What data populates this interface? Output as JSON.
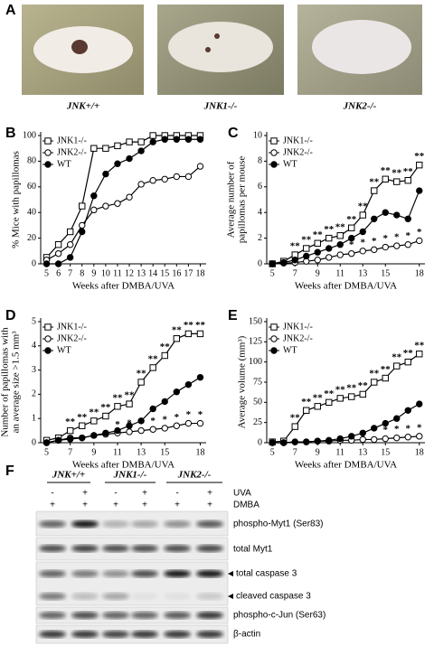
{
  "photos": {
    "panel": "A",
    "labels": [
      "JNK+/+",
      "JNK1-/-",
      "JNK2-/-"
    ]
  },
  "chart_data": [
    {
      "type": "line",
      "panel": "B",
      "xlabel": "Weeks after DMBA/UVA",
      "ylabel": [
        "% Mice with papillomas"
      ],
      "x": [
        5,
        6,
        7,
        8,
        9,
        10,
        11,
        12,
        13,
        14,
        15,
        16,
        17,
        18
      ],
      "xlim": [
        4.5,
        18.5
      ],
      "xticks": [
        5,
        6,
        7,
        8,
        9,
        10,
        11,
        12,
        13,
        14,
        15,
        16,
        17,
        18
      ],
      "ylim": [
        0,
        100
      ],
      "yticks": [
        0,
        20,
        40,
        60,
        80,
        100
      ],
      "series": [
        {
          "name": "JNK1-/-",
          "color": "#000000",
          "marker": "square",
          "values": [
            5,
            15,
            25,
            45,
            90,
            90,
            92,
            95,
            95,
            100,
            100,
            100,
            100,
            100
          ],
          "significance": [
            null,
            null,
            null,
            null,
            null,
            null,
            null,
            null,
            null,
            null,
            null,
            null,
            null,
            null
          ]
        },
        {
          "name": "JNK2-/-",
          "color": "#000000",
          "marker": "open-circle",
          "values": [
            3,
            8,
            15,
            30,
            42,
            45,
            47,
            52,
            62,
            65,
            66,
            68,
            68,
            76
          ],
          "significance": [
            null,
            null,
            null,
            null,
            null,
            null,
            null,
            null,
            null,
            null,
            null,
            null,
            null,
            null
          ]
        },
        {
          "name": "WT",
          "color": "#000000",
          "marker": "filled-circle",
          "values": [
            0,
            0,
            5,
            25,
            53,
            70,
            78,
            82,
            88,
            95,
            97,
            97,
            97,
            97
          ],
          "significance": [
            null,
            null,
            null,
            null,
            null,
            null,
            null,
            null,
            null,
            null,
            null,
            null,
            null,
            null
          ]
        }
      ]
    },
    {
      "type": "line",
      "panel": "C",
      "xlabel": "Weeks after DMBA/UVA",
      "ylabel": [
        "Average number of",
        "papillomas per mouse"
      ],
      "x": [
        5,
        6,
        7,
        8,
        9,
        10,
        11,
        12,
        13,
        14,
        15,
        16,
        17,
        18
      ],
      "xlim": [
        4.5,
        18.5
      ],
      "xticks": [
        5,
        7,
        9,
        11,
        13,
        15,
        18
      ],
      "ylim": [
        0,
        10
      ],
      "yticks": [
        0,
        2,
        4,
        6,
        8,
        10
      ],
      "series": [
        {
          "name": "JNK1-/-",
          "color": "#000000",
          "marker": "square",
          "values": [
            0,
            0.2,
            0.7,
            1.2,
            1.6,
            2.0,
            2.2,
            2.8,
            3.8,
            5.7,
            6.6,
            6.4,
            6.5,
            7.7
          ],
          "significance": [
            null,
            null,
            "**",
            "**",
            "**",
            "**",
            "**",
            "**",
            "**",
            "**",
            "**",
            "**",
            "**",
            "**"
          ]
        },
        {
          "name": "JNK2-/-",
          "color": "#000000",
          "marker": "open-circle",
          "values": [
            0,
            0.05,
            0.1,
            0.2,
            0.3,
            0.5,
            0.7,
            0.8,
            1.0,
            1.1,
            1.3,
            1.4,
            1.5,
            1.8
          ],
          "significance": [
            null,
            null,
            null,
            null,
            null,
            "*",
            "*",
            "*",
            "*",
            "*",
            "*",
            "*",
            "*",
            "*"
          ]
        },
        {
          "name": "WT",
          "color": "#000000",
          "marker": "filled-circle",
          "values": [
            0,
            0.1,
            0.3,
            0.6,
            0.9,
            1.2,
            1.5,
            2.0,
            2.5,
            3.5,
            4.0,
            3.8,
            3.5,
            5.7
          ],
          "significance": [
            null,
            null,
            null,
            null,
            null,
            null,
            null,
            null,
            null,
            null,
            null,
            null,
            null,
            null
          ]
        }
      ]
    },
    {
      "type": "line",
      "panel": "D",
      "xlabel": "Weeks after DMBA/UVA",
      "ylabel": [
        "Number of papillomas with",
        "an average size >1.5 mm³"
      ],
      "x": [
        5,
        6,
        7,
        8,
        9,
        10,
        11,
        12,
        13,
        14,
        15,
        16,
        17,
        18
      ],
      "xlim": [
        4.5,
        18.5
      ],
      "xticks": [
        5,
        7,
        9,
        11,
        13,
        15,
        18
      ],
      "ylim": [
        0,
        5
      ],
      "yticks": [
        0,
        1,
        2,
        3,
        4,
        5
      ],
      "series": [
        {
          "name": "JNK1-/-",
          "color": "#000000",
          "marker": "square",
          "values": [
            0.1,
            0.2,
            0.5,
            0.7,
            0.9,
            1.1,
            1.5,
            1.6,
            2.5,
            3.1,
            3.6,
            4.3,
            4.5,
            4.5
          ],
          "significance": [
            null,
            null,
            "**",
            "**",
            "**",
            "**",
            "**",
            "**",
            "**",
            "**",
            "**",
            "**",
            "**",
            "**"
          ]
        },
        {
          "name": "JNK2-/-",
          "color": "#000000",
          "marker": "open-circle",
          "values": [
            0,
            0.1,
            0.2,
            0.2,
            0.3,
            0.35,
            0.4,
            0.45,
            0.5,
            0.55,
            0.6,
            0.7,
            0.8,
            0.8
          ],
          "significance": [
            null,
            null,
            null,
            null,
            null,
            null,
            "*",
            "*",
            "*",
            "*",
            "*",
            "*",
            "*",
            "*"
          ]
        },
        {
          "name": "WT",
          "color": "#000000",
          "marker": "filled-circle",
          "values": [
            0,
            0.1,
            0.15,
            0.2,
            0.3,
            0.4,
            0.5,
            0.7,
            0.9,
            1.4,
            1.7,
            2.1,
            2.4,
            2.7
          ],
          "significance": [
            null,
            null,
            null,
            null,
            null,
            null,
            null,
            null,
            null,
            null,
            null,
            null,
            null,
            null
          ]
        }
      ]
    },
    {
      "type": "line",
      "panel": "E",
      "xlabel": "Weeks after DMBA/UVA",
      "ylabel": [
        "Average volume (mm³)"
      ],
      "x": [
        5,
        6,
        7,
        8,
        9,
        10,
        11,
        12,
        13,
        14,
        15,
        16,
        17,
        18
      ],
      "xlim": [
        4.5,
        18.5
      ],
      "xticks": [
        5,
        7,
        9,
        11,
        13,
        15,
        18
      ],
      "ylim": [
        0,
        150
      ],
      "yticks": [
        0,
        25,
        50,
        75,
        100,
        125,
        150
      ],
      "series": [
        {
          "name": "JNK1-/-",
          "color": "#000000",
          "marker": "square",
          "values": [
            1,
            2,
            20,
            40,
            45,
            50,
            55,
            57,
            60,
            75,
            80,
            95,
            100,
            110
          ],
          "significance": [
            null,
            null,
            "**",
            "**",
            "**",
            "**",
            "**",
            "**",
            "**",
            "**",
            "**",
            "**",
            "**",
            "**"
          ]
        },
        {
          "name": "JNK2-/-",
          "color": "#000000",
          "marker": "open-circle",
          "values": [
            0,
            0,
            1,
            1,
            2,
            2,
            3,
            3,
            4,
            4,
            5,
            6,
            7,
            8
          ],
          "significance": [
            null,
            null,
            null,
            null,
            null,
            null,
            null,
            null,
            null,
            "*",
            "*",
            "*",
            "*",
            "*"
          ]
        },
        {
          "name": "WT",
          "color": "#000000",
          "marker": "filled-circle",
          "values": [
            0,
            0,
            1,
            1,
            2,
            3,
            5,
            8,
            12,
            18,
            24,
            30,
            40,
            48
          ],
          "significance": [
            null,
            null,
            null,
            null,
            null,
            null,
            null,
            null,
            null,
            null,
            null,
            null,
            null,
            null
          ]
        }
      ]
    }
  ],
  "blot": {
    "panel": "F",
    "groups": [
      "JNK+/+",
      "JNK1-/-",
      "JNK2-/-"
    ],
    "rows": [
      {
        "label": "UVA",
        "signs": [
          "-",
          "+",
          "-",
          "+",
          "-",
          "+"
        ]
      },
      {
        "label": "DMBA",
        "signs": [
          "+",
          "+",
          "+",
          "+",
          "+",
          "+"
        ]
      }
    ],
    "bands": [
      "phospho-Myt1 (Ser83)",
      "total Myt1",
      "total caspase 3",
      "cleaved caspase 3",
      "phospho-c-Jun (Ser63)",
      "β-actin"
    ]
  }
}
